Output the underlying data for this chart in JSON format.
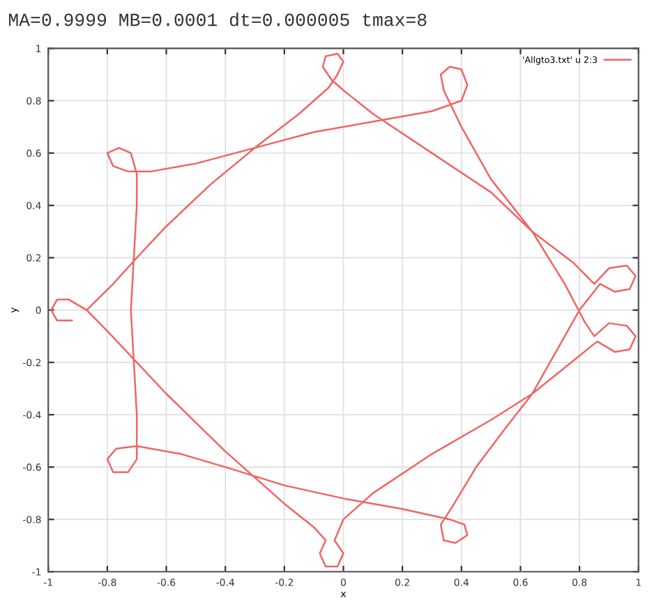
{
  "chart_data": {
    "type": "line",
    "title": "MA=0.9999 MB=0.0001 dt=0.000005 tmax=8",
    "xlabel": "x",
    "ylabel": "y",
    "xlim": [
      -1,
      1
    ],
    "ylim": [
      -1,
      1
    ],
    "xticks": [
      -1,
      -0.8,
      -0.6,
      -0.4,
      -0.2,
      0,
      0.2,
      0.4,
      0.6,
      0.8,
      1
    ],
    "yticks": [
      -1,
      -0.8,
      -0.6,
      -0.4,
      -0.2,
      0,
      0.2,
      0.4,
      0.6,
      0.8,
      1
    ],
    "grid": true,
    "legend": "top right",
    "marker": "none",
    "line_style": "solid",
    "series": [
      {
        "name": "'Allgto3.txt' u 2:3",
        "color": "#f06464",
        "x": [
          -0.92,
          -0.97,
          -0.99,
          -0.97,
          -0.93,
          -0.87,
          -0.78,
          -0.7,
          -0.6,
          -0.45,
          -0.3,
          -0.15,
          -0.05,
          -0.02,
          0.0,
          -0.02,
          -0.06,
          -0.07,
          -0.04,
          0.0,
          0.1,
          0.3,
          0.5,
          0.64,
          0.78,
          0.85,
          0.9,
          0.96,
          0.99,
          0.97,
          0.92,
          0.87,
          0.8,
          0.7,
          0.64,
          0.55,
          0.45,
          0.37,
          0.33,
          0.34,
          0.38,
          0.42,
          0.41,
          0.36,
          0.2,
          0.1,
          0.0,
          -0.2,
          -0.4,
          -0.55,
          -0.7,
          -0.77,
          -0.8,
          -0.78,
          -0.73,
          -0.7,
          -0.7,
          -0.71,
          -0.72,
          -0.71,
          -0.7,
          -0.7,
          -0.72,
          -0.76,
          -0.8,
          -0.78,
          -0.73,
          -0.65,
          -0.5,
          -0.3,
          -0.1,
          0.1,
          0.3,
          0.4,
          0.42,
          0.4,
          0.36,
          0.33,
          0.34,
          0.4,
          0.5,
          0.64,
          0.75,
          0.82,
          0.85,
          0.9,
          0.96,
          0.99,
          0.97,
          0.92,
          0.86,
          0.75,
          0.64,
          0.5,
          0.3,
          0.1,
          0.0,
          -0.03,
          0.0,
          -0.02,
          -0.06,
          -0.08,
          -0.06,
          -0.1,
          -0.2,
          -0.3,
          -0.4,
          -0.5,
          -0.6,
          -0.7,
          -0.8,
          -0.87
        ],
        "values": [
          -0.04,
          -0.04,
          0.0,
          0.04,
          0.04,
          0.0,
          0.1,
          0.2,
          0.32,
          0.48,
          0.62,
          0.75,
          0.85,
          0.9,
          0.95,
          0.98,
          0.97,
          0.93,
          0.88,
          0.84,
          0.75,
          0.6,
          0.45,
          0.3,
          0.18,
          0.1,
          0.16,
          0.17,
          0.13,
          0.08,
          0.07,
          0.1,
          0.0,
          -0.2,
          -0.32,
          -0.45,
          -0.6,
          -0.75,
          -0.82,
          -0.88,
          -0.89,
          -0.86,
          -0.82,
          -0.8,
          -0.76,
          -0.74,
          -0.72,
          -0.67,
          -0.6,
          -0.55,
          -0.52,
          -0.53,
          -0.57,
          -0.62,
          -0.62,
          -0.57,
          -0.4,
          -0.2,
          0.0,
          0.2,
          0.4,
          0.52,
          0.6,
          0.62,
          0.6,
          0.55,
          0.53,
          0.53,
          0.56,
          0.62,
          0.68,
          0.72,
          0.76,
          0.8,
          0.86,
          0.92,
          0.93,
          0.9,
          0.84,
          0.7,
          0.5,
          0.3,
          0.1,
          -0.05,
          -0.1,
          -0.05,
          -0.06,
          -0.1,
          -0.15,
          -0.16,
          -0.12,
          -0.22,
          -0.32,
          -0.42,
          -0.55,
          -0.7,
          -0.8,
          -0.88,
          -0.93,
          -0.98,
          -0.98,
          -0.93,
          -0.88,
          -0.83,
          -0.74,
          -0.64,
          -0.54,
          -0.43,
          -0.32,
          -0.2,
          -0.08,
          0.0
        ]
      }
    ]
  }
}
